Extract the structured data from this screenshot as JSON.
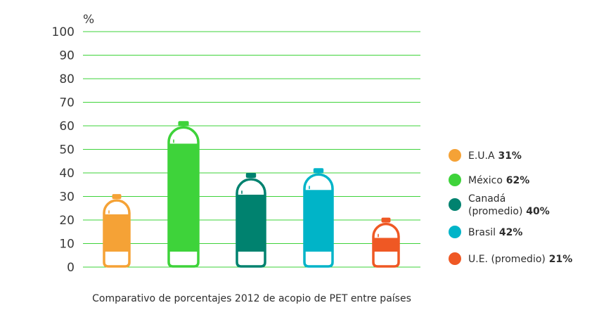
{
  "chart_data": {
    "type": "bar",
    "unit_label": "%",
    "ylim": [
      0,
      100
    ],
    "yticks": [
      0,
      10,
      20,
      30,
      40,
      50,
      60,
      70,
      80,
      90,
      100
    ],
    "grid": true,
    "legend_position": "right",
    "caption": "Comparativo de porcentajes 2012 de acopio de PET entre países",
    "categories": [
      "E.U.A",
      "México",
      "Canadá (promedio)",
      "Brasil",
      "U.E. (promedio)"
    ],
    "values": [
      31,
      62,
      40,
      42,
      21
    ],
    "colors": [
      "#f5a236",
      "#3ed33a",
      "#00826f",
      "#00b4c8",
      "#ef5824"
    ],
    "legend": [
      {
        "lines": [
          "E.U.A"
        ],
        "value": "31%"
      },
      {
        "lines": [
          "México"
        ],
        "value": "62%"
      },
      {
        "lines": [
          "Canadá",
          "(promedio)"
        ],
        "value": "40%"
      },
      {
        "lines": [
          "Brasil"
        ],
        "value": "42%"
      },
      {
        "lines": [
          "U.E. (promedio)"
        ],
        "value": "21%"
      }
    ],
    "colors_meta": {
      "gridline": "#3ed33a",
      "axis": "#3a3a3a"
    }
  }
}
